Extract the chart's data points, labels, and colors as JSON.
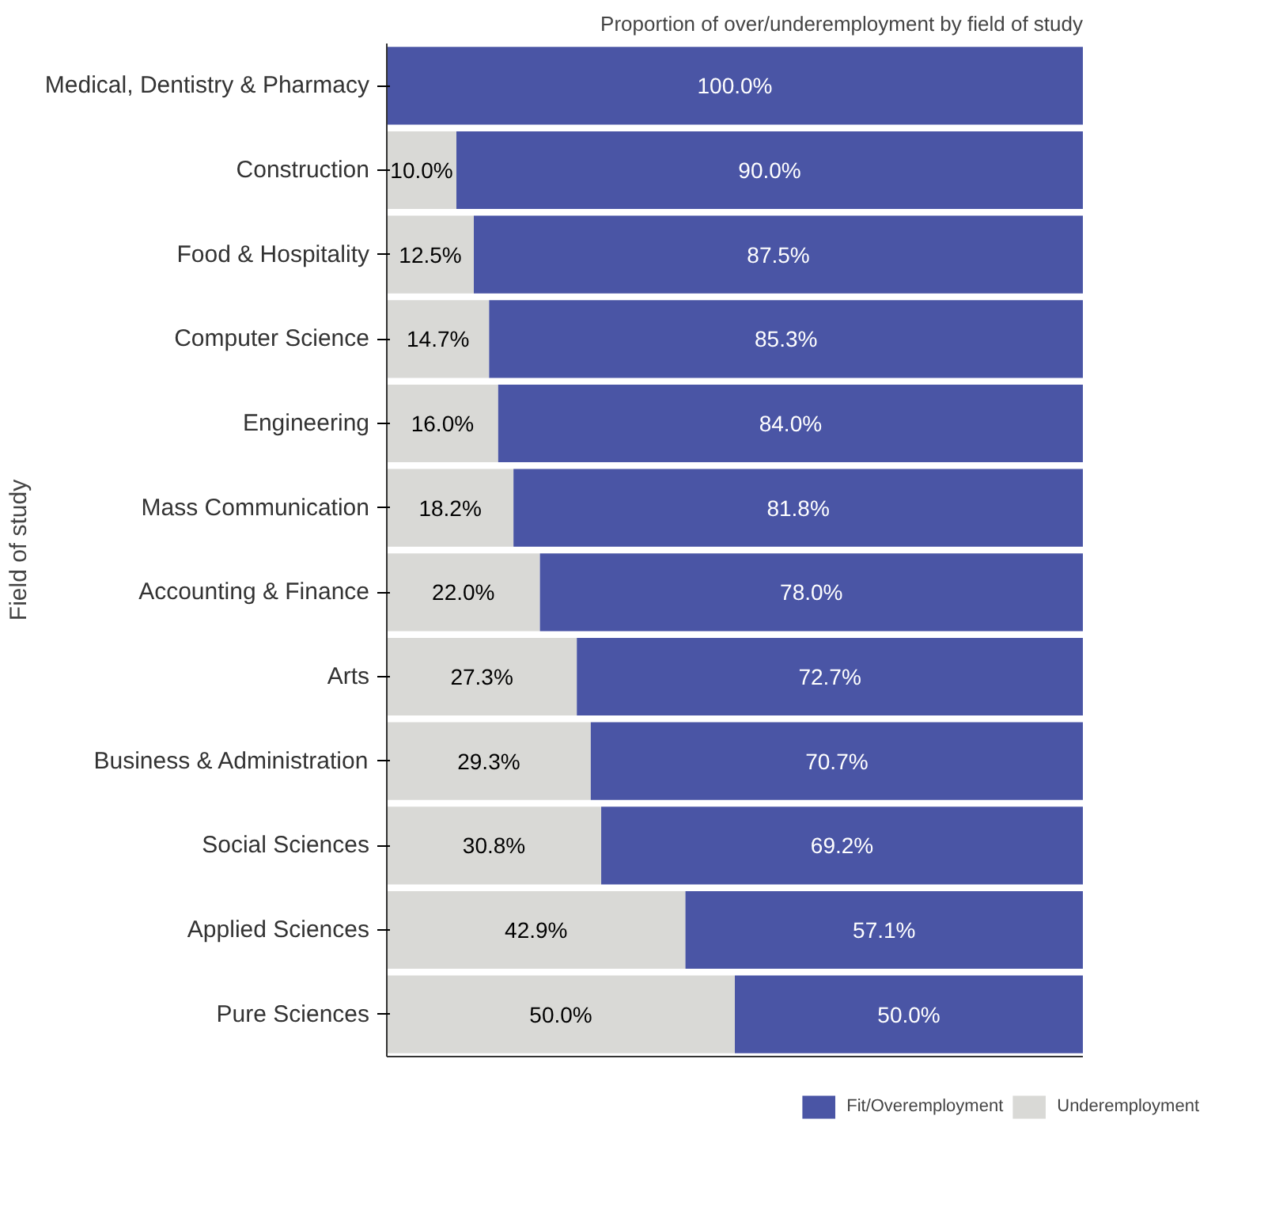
{
  "chart_data": {
    "type": "bar",
    "orientation": "horizontal",
    "stacked": true,
    "title": "Proportion of over/underemployment by field of study",
    "ylabel": "Field of study",
    "categories": [
      "Medical, Dentistry & Pharmacy",
      "Construction",
      "Food & Hospitality",
      "Computer Science",
      "Engineering",
      "Mass Communication",
      "Accounting & Finance",
      "Arts",
      "Business & Administration",
      "Social Sciences",
      "Applied Sciences",
      "Pure Sciences"
    ],
    "series": [
      {
        "name": "Underemployment",
        "color": "#d9d9d6",
        "values": [
          0,
          10.0,
          12.5,
          14.7,
          16.0,
          18.2,
          22.0,
          27.3,
          29.3,
          30.8,
          42.9,
          50.0
        ],
        "value_labels": [
          null,
          "10.0%",
          "12.5%",
          "14.7%",
          "16.0%",
          "18.2%",
          "22.0%",
          "27.3%",
          "29.3%",
          "30.8%",
          "42.9%",
          "50.0%"
        ]
      },
      {
        "name": "Fit/Overemployment",
        "color": "#4a55a5",
        "values": [
          100.0,
          90.0,
          87.5,
          85.3,
          84.0,
          81.8,
          78.0,
          72.7,
          70.7,
          69.2,
          57.1,
          50.0
        ],
        "value_labels": [
          "100.0%",
          "90.0%",
          "87.5%",
          "85.3%",
          "84.0%",
          "81.8%",
          "78.0%",
          "72.7%",
          "70.7%",
          "69.2%",
          "57.1%",
          "50.0%"
        ]
      }
    ],
    "tick_labels": "y",
    "grid": false,
    "legend": "bottom right"
  }
}
